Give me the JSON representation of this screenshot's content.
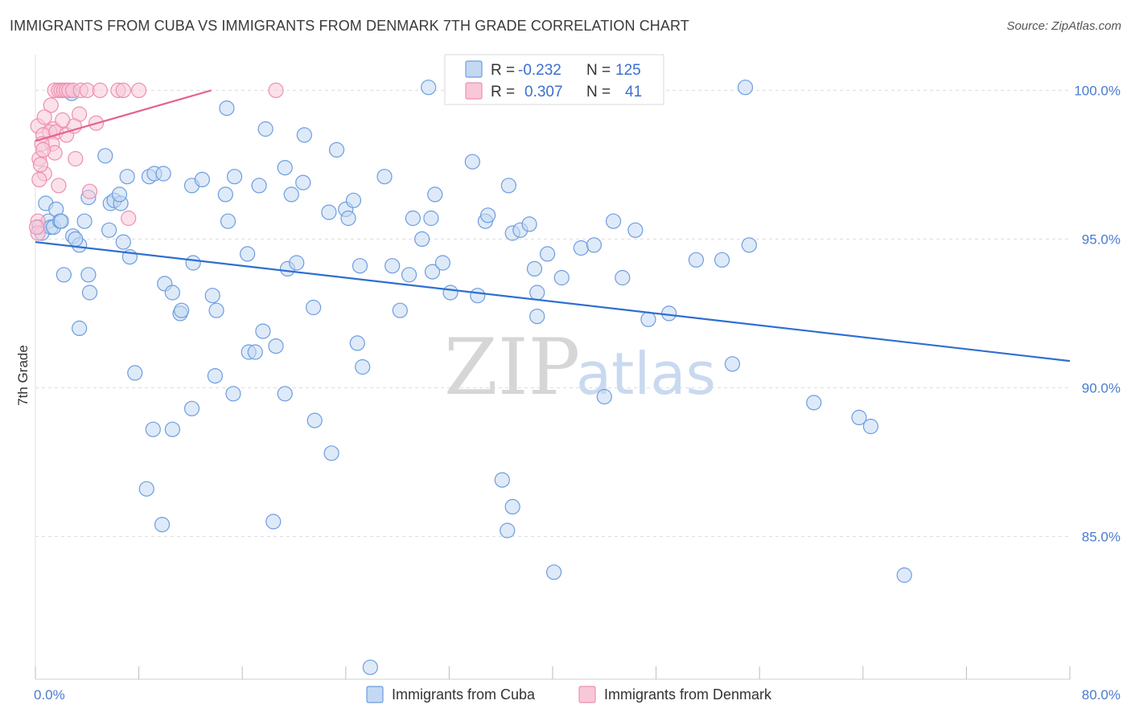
{
  "header": {
    "title": "IMMIGRANTS FROM CUBA VS IMMIGRANTS FROM DENMARK 7TH GRADE CORRELATION CHART",
    "source": "Source: ZipAtlas.com"
  },
  "watermark": {
    "zip": "ZIP",
    "atlas": "atlas"
  },
  "chart_data": {
    "type": "scatter",
    "title": "IMMIGRANTS FROM CUBA VS IMMIGRANTS FROM DENMARK 7TH GRADE CORRELATION CHART",
    "xlabel": "",
    "ylabel": "7th Grade",
    "xlim": [
      0,
      80
    ],
    "ylim": [
      80.2,
      101.2
    ],
    "x_tick_labels": [
      "0.0%",
      "80.0%"
    ],
    "y_ticks": [
      85,
      90,
      95,
      100
    ],
    "y_tick_labels": [
      "85.0%",
      "90.0%",
      "95.0%",
      "100.0%"
    ],
    "grid": true,
    "legend_position": "top-center",
    "legend": {
      "rows": [
        {
          "r_label": "R =",
          "r_value": "-0.232",
          "n_label": "N =",
          "n_value": "125"
        },
        {
          "r_label": "R =",
          "r_value": "0.307",
          "n_label": "N =",
          "n_value": "41"
        }
      ]
    },
    "series": [
      {
        "name": "Immigrants from Cuba",
        "color": "#6d9de0",
        "fill": "#c3d8f3",
        "trend_color": "#2f6fcf",
        "trend": {
          "x": [
            0,
            80
          ],
          "y": [
            94.9,
            90.9
          ]
        },
        "points": [
          [
            0.3,
            95.4
          ],
          [
            0.5,
            95.2
          ],
          [
            0.8,
            96.2
          ],
          [
            1.0,
            95.6
          ],
          [
            1.2,
            95.4
          ],
          [
            1.4,
            95.4
          ],
          [
            1.6,
            96.0
          ],
          [
            1.9,
            95.6
          ],
          [
            2.0,
            95.6
          ],
          [
            2.9,
            95.1
          ],
          [
            2.2,
            93.8
          ],
          [
            3.4,
            94.8
          ],
          [
            3.1,
            95.0
          ],
          [
            4.1,
            93.8
          ],
          [
            3.8,
            95.6
          ],
          [
            4.1,
            96.4
          ],
          [
            5.8,
            96.2
          ],
          [
            5.7,
            95.3
          ],
          [
            6.1,
            96.3
          ],
          [
            6.6,
            96.2
          ],
          [
            6.5,
            96.5
          ],
          [
            6.8,
            94.9
          ],
          [
            5.4,
            97.8
          ],
          [
            4.2,
            93.2
          ],
          [
            3.4,
            92.0
          ],
          [
            7.1,
            97.1
          ],
          [
            7.3,
            94.4
          ],
          [
            8.8,
            97.1
          ],
          [
            9.2,
            97.2
          ],
          [
            9.9,
            97.2
          ],
          [
            10.0,
            93.5
          ],
          [
            10.6,
            93.2
          ],
          [
            11.2,
            92.5
          ],
          [
            12.2,
            94.2
          ],
          [
            11.3,
            92.6
          ],
          [
            12.1,
            96.8
          ],
          [
            12.9,
            97.0
          ],
          [
            13.7,
            93.1
          ],
          [
            14.0,
            92.6
          ],
          [
            14.7,
            96.5
          ],
          [
            14.8,
            99.4
          ],
          [
            15.4,
            97.1
          ],
          [
            14.9,
            95.6
          ],
          [
            16.4,
            94.5
          ],
          [
            16.5,
            91.2
          ],
          [
            17.0,
            91.2
          ],
          [
            17.3,
            96.8
          ],
          [
            17.6,
            91.9
          ],
          [
            17.8,
            98.7
          ],
          [
            18.6,
            91.4
          ],
          [
            19.3,
            97.4
          ],
          [
            19.5,
            94.0
          ],
          [
            19.8,
            96.5
          ],
          [
            20.2,
            94.2
          ],
          [
            20.7,
            96.9
          ],
          [
            20.8,
            98.5
          ],
          [
            21.5,
            92.7
          ],
          [
            22.7,
            95.9
          ],
          [
            23.3,
            98.0
          ],
          [
            24.0,
            96.0
          ],
          [
            24.2,
            95.7
          ],
          [
            24.6,
            96.3
          ],
          [
            24.9,
            91.5
          ],
          [
            25.1,
            94.1
          ],
          [
            25.3,
            90.7
          ],
          [
            27.0,
            97.1
          ],
          [
            27.6,
            94.1
          ],
          [
            28.2,
            92.6
          ],
          [
            28.9,
            93.8
          ],
          [
            29.2,
            95.7
          ],
          [
            29.9,
            95.0
          ],
          [
            30.6,
            95.7
          ],
          [
            30.7,
            93.9
          ],
          [
            30.9,
            96.5
          ],
          [
            31.5,
            94.2
          ],
          [
            32.1,
            93.2
          ],
          [
            33.8,
            97.6
          ],
          [
            34.2,
            93.1
          ],
          [
            34.8,
            95.6
          ],
          [
            35.0,
            95.8
          ],
          [
            36.6,
            96.8
          ],
          [
            36.9,
            95.2
          ],
          [
            37.5,
            95.3
          ],
          [
            38.2,
            95.5
          ],
          [
            38.6,
            94.0
          ],
          [
            38.8,
            92.4
          ],
          [
            38.8,
            93.2
          ],
          [
            39.6,
            94.5
          ],
          [
            40.7,
            93.7
          ],
          [
            42.2,
            94.7
          ],
          [
            43.2,
            94.8
          ],
          [
            44.0,
            89.7
          ],
          [
            44.7,
            95.6
          ],
          [
            45.4,
            93.7
          ],
          [
            46.4,
            95.3
          ],
          [
            47.4,
            92.3
          ],
          [
            49.0,
            92.5
          ],
          [
            51.1,
            94.3
          ],
          [
            53.1,
            94.3
          ],
          [
            53.9,
            90.8
          ],
          [
            54.9,
            100.1
          ],
          [
            55.2,
            94.8
          ],
          [
            60.2,
            89.5
          ],
          [
            63.7,
            89.0
          ],
          [
            64.6,
            88.7
          ],
          [
            67.2,
            83.7
          ],
          [
            2.8,
            99.9
          ],
          [
            30.4,
            100.1
          ],
          [
            7.7,
            90.5
          ],
          [
            9.1,
            88.6
          ],
          [
            10.6,
            88.6
          ],
          [
            12.1,
            89.3
          ],
          [
            13.9,
            90.4
          ],
          [
            15.3,
            89.8
          ],
          [
            19.3,
            89.8
          ],
          [
            21.6,
            88.9
          ],
          [
            22.9,
            87.8
          ],
          [
            36.1,
            86.9
          ],
          [
            36.9,
            86.0
          ],
          [
            36.5,
            85.2
          ],
          [
            8.6,
            86.6
          ],
          [
            9.8,
            85.4
          ],
          [
            18.4,
            85.5
          ],
          [
            40.1,
            83.8
          ],
          [
            25.9,
            80.6
          ]
        ]
      },
      {
        "name": "Immigrants from Denmark",
        "color": "#ee8fb0",
        "fill": "#f8c8d8",
        "trend_color": "#e5628f",
        "trend": {
          "x": [
            0,
            13.6
          ],
          "y": [
            98.3,
            100.0
          ]
        },
        "points": [
          [
            1.5,
            100.0
          ],
          [
            1.8,
            100.0
          ],
          [
            2.0,
            100.0
          ],
          [
            2.2,
            100.0
          ],
          [
            2.4,
            100.0
          ],
          [
            2.6,
            100.0
          ],
          [
            2.9,
            100.0
          ],
          [
            3.5,
            100.0
          ],
          [
            4.0,
            100.0
          ],
          [
            5.0,
            100.0
          ],
          [
            6.4,
            100.0
          ],
          [
            6.8,
            100.0
          ],
          [
            8.0,
            100.0
          ],
          [
            18.6,
            100.0
          ],
          [
            1.2,
            99.5
          ],
          [
            3.4,
            99.2
          ],
          [
            4.7,
            98.9
          ],
          [
            0.2,
            98.8
          ],
          [
            0.7,
            99.1
          ],
          [
            1.4,
            98.7
          ],
          [
            1.1,
            98.6
          ],
          [
            0.6,
            98.5
          ],
          [
            1.6,
            98.6
          ],
          [
            2.4,
            98.5
          ],
          [
            3.0,
            98.8
          ],
          [
            1.3,
            98.2
          ],
          [
            0.5,
            98.2
          ],
          [
            1.5,
            97.9
          ],
          [
            0.3,
            97.7
          ],
          [
            3.1,
            97.7
          ],
          [
            0.7,
            97.2
          ],
          [
            0.3,
            97.0
          ],
          [
            1.8,
            96.8
          ],
          [
            4.2,
            96.6
          ],
          [
            7.2,
            95.7
          ],
          [
            0.2,
            95.6
          ],
          [
            0.2,
            95.2
          ],
          [
            0.1,
            95.4
          ],
          [
            0.6,
            98.0
          ],
          [
            0.4,
            97.5
          ],
          [
            2.1,
            99.0
          ]
        ]
      }
    ]
  },
  "bottom_legend": {
    "items": [
      {
        "label": "Immigrants from Cuba",
        "color": "#6d9de0",
        "fill": "#c3d8f3"
      },
      {
        "label": "Immigrants from Denmark",
        "color": "#ee8fb0",
        "fill": "#f8c8d8"
      }
    ]
  }
}
